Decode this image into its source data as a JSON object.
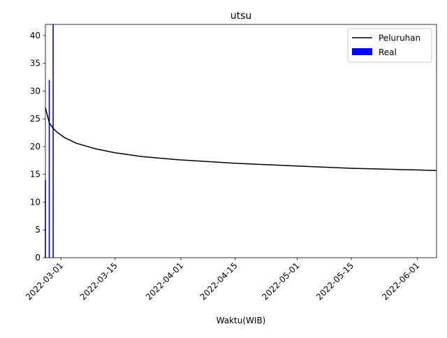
{
  "chart_data": {
    "type": "bar",
    "title": "utsu",
    "xlabel": "Waktu(WIB)",
    "ylabel": "",
    "ylim": [
      0,
      42
    ],
    "xlim": [
      "2022-02-25",
      "2022-06-06"
    ],
    "x_ticks": [
      "2022-03-01",
      "2022-03-15",
      "2022-04-01",
      "2022-04-15",
      "2022-05-01",
      "2022-05-15",
      "2022-06-01"
    ],
    "y_ticks": [
      0,
      5,
      10,
      15,
      20,
      25,
      30,
      35,
      40
    ],
    "legend_position": "top-right",
    "grid": false,
    "series": [
      {
        "name": "Peluruhan",
        "kind": "line",
        "color": "#000000",
        "points": [
          {
            "x": "2022-02-25",
            "y": 27.0
          },
          {
            "x": "2022-02-26",
            "y": 24.3
          },
          {
            "x": "2022-02-27",
            "y": 23.3
          },
          {
            "x": "2022-02-28",
            "y": 22.6
          },
          {
            "x": "2022-03-02",
            "y": 21.6
          },
          {
            "x": "2022-03-05",
            "y": 20.6
          },
          {
            "x": "2022-03-10",
            "y": 19.6
          },
          {
            "x": "2022-03-15",
            "y": 18.9
          },
          {
            "x": "2022-03-22",
            "y": 18.2
          },
          {
            "x": "2022-04-01",
            "y": 17.6
          },
          {
            "x": "2022-04-15",
            "y": 17.0
          },
          {
            "x": "2022-05-01",
            "y": 16.5
          },
          {
            "x": "2022-05-15",
            "y": 16.1
          },
          {
            "x": "2022-06-01",
            "y": 15.8
          },
          {
            "x": "2022-06-06",
            "y": 15.7
          }
        ]
      },
      {
        "name": "Real",
        "kind": "bar",
        "color": "#0000ff",
        "points": [
          {
            "x": "2022-02-25",
            "y": 14
          },
          {
            "x": "2022-02-26",
            "y": 32
          },
          {
            "x": "2022-02-27",
            "y": 42
          }
        ]
      }
    ]
  }
}
